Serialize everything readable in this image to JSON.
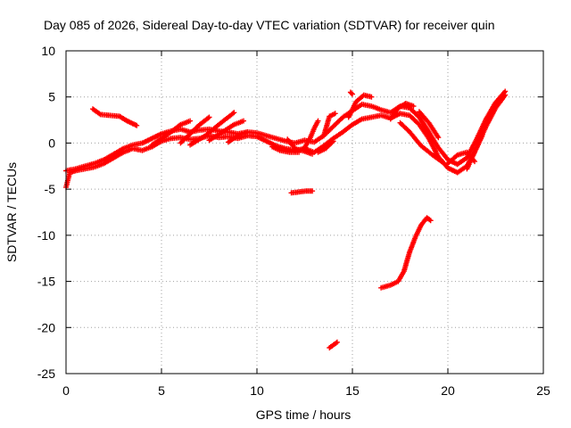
{
  "chart_data": {
    "type": "scatter",
    "title": "Day 085 of 2026, Sidereal Day-to-day VTEC variation (SDTVAR) for receiver quin",
    "xlabel": "GPS time / hours",
    "ylabel": "SDTVAR / TECUs",
    "xlim": [
      0,
      25
    ],
    "ylim": [
      -25,
      10
    ],
    "xticks": [
      0,
      5,
      10,
      15,
      20,
      25
    ],
    "yticks": [
      10,
      5,
      0,
      -5,
      -10,
      -15,
      -20,
      -25
    ],
    "grid": true,
    "marker": "+",
    "color": "#ff0000",
    "series": [
      {
        "name": "main-lower",
        "points": [
          [
            0.0,
            -4.8
          ],
          [
            0.2,
            -3.2
          ],
          [
            0.5,
            -3.0
          ],
          [
            1.0,
            -2.8
          ],
          [
            1.5,
            -2.6
          ],
          [
            2.0,
            -2.2
          ],
          [
            2.5,
            -1.6
          ],
          [
            3.0,
            -1.0
          ],
          [
            3.5,
            -0.6
          ],
          [
            4.0,
            -0.8
          ],
          [
            4.5,
            -0.4
          ],
          [
            5.0,
            0.2
          ],
          [
            5.5,
            0.5
          ],
          [
            6.0,
            0.6
          ],
          [
            6.5,
            0.4
          ],
          [
            7.0,
            0.5
          ],
          [
            7.5,
            0.8
          ],
          [
            8.0,
            0.6
          ],
          [
            8.5,
            0.7
          ],
          [
            9.0,
            0.5
          ],
          [
            9.5,
            0.8
          ],
          [
            10.0,
            0.7
          ],
          [
            10.5,
            0.2
          ],
          [
            11.0,
            -0.3
          ],
          [
            11.5,
            -0.6
          ],
          [
            12.0,
            -0.8
          ],
          [
            12.5,
            -0.6
          ],
          [
            13.0,
            -1.0
          ],
          [
            13.5,
            -0.3
          ],
          [
            14.0,
            0.5
          ],
          [
            14.5,
            1.2
          ],
          [
            15.0,
            2.0
          ],
          [
            15.5,
            2.6
          ],
          [
            16.0,
            2.8
          ],
          [
            16.5,
            3.0
          ],
          [
            17.0,
            2.7
          ],
          [
            17.5,
            3.2
          ],
          [
            18.0,
            3.0
          ],
          [
            18.5,
            2.0
          ],
          [
            19.0,
            0.5
          ],
          [
            19.5,
            -1.5
          ],
          [
            20.0,
            -2.7
          ],
          [
            20.5,
            -3.2
          ],
          [
            21.0,
            -2.5
          ],
          [
            21.5,
            -0.5
          ],
          [
            22.0,
            1.8
          ],
          [
            22.5,
            3.8
          ],
          [
            23.0,
            5.2
          ]
        ]
      },
      {
        "name": "main-upper",
        "points": [
          [
            0.0,
            -3.0
          ],
          [
            0.5,
            -2.8
          ],
          [
            1.0,
            -2.5
          ],
          [
            1.5,
            -2.2
          ],
          [
            2.0,
            -1.8
          ],
          [
            2.5,
            -1.2
          ],
          [
            3.0,
            -0.6
          ],
          [
            3.5,
            -0.2
          ],
          [
            4.0,
            0.0
          ],
          [
            4.5,
            0.5
          ],
          [
            5.0,
            1.0
          ],
          [
            5.5,
            1.3
          ],
          [
            6.0,
            1.5
          ],
          [
            6.5,
            1.2
          ],
          [
            7.0,
            1.4
          ],
          [
            7.5,
            1.5
          ],
          [
            8.0,
            1.3
          ],
          [
            8.5,
            1.2
          ],
          [
            9.0,
            1.0
          ],
          [
            9.5,
            1.2
          ],
          [
            10.0,
            1.1
          ],
          [
            10.5,
            0.8
          ],
          [
            11.0,
            0.5
          ],
          [
            11.5,
            0.2
          ],
          [
            12.0,
            0.0
          ],
          [
            12.5,
            0.3
          ],
          [
            13.0,
            0.1
          ],
          [
            13.5,
            0.8
          ],
          [
            14.0,
            1.8
          ],
          [
            14.5,
            2.8
          ],
          [
            15.0,
            3.5
          ],
          [
            15.5,
            4.2
          ],
          [
            16.0,
            4.0
          ],
          [
            16.5,
            3.6
          ],
          [
            17.0,
            3.3
          ],
          [
            17.5,
            4.0
          ],
          [
            18.0,
            3.8
          ],
          [
            18.5,
            2.8
          ],
          [
            19.0,
            1.2
          ],
          [
            19.5,
            -0.5
          ],
          [
            20.0,
            -1.8
          ],
          [
            20.5,
            -2.3
          ],
          [
            21.0,
            -1.6
          ],
          [
            21.5,
            0.4
          ],
          [
            22.0,
            2.6
          ],
          [
            22.5,
            4.4
          ],
          [
            23.0,
            5.6
          ]
        ]
      },
      {
        "name": "diag-1",
        "points": [
          [
            4.5,
            -0.2
          ],
          [
            5.0,
            0.5
          ],
          [
            5.5,
            1.2
          ],
          [
            6.0,
            2.0
          ],
          [
            6.5,
            2.4
          ]
        ]
      },
      {
        "name": "diag-2",
        "points": [
          [
            6.0,
            0.0
          ],
          [
            6.5,
            1.0
          ],
          [
            7.0,
            2.0
          ],
          [
            7.5,
            2.8
          ]
        ]
      },
      {
        "name": "diag-3",
        "points": [
          [
            6.5,
            -0.2
          ],
          [
            7.3,
            0.8
          ],
          [
            8.0,
            2.0
          ],
          [
            8.8,
            3.3
          ]
        ]
      },
      {
        "name": "diag-4",
        "points": [
          [
            7.5,
            0.3
          ],
          [
            8.2,
            1.2
          ],
          [
            8.8,
            2.0
          ],
          [
            9.3,
            2.4
          ]
        ]
      },
      {
        "name": "diag-5",
        "points": [
          [
            8.5,
            0.1
          ],
          [
            9.0,
            0.8
          ],
          [
            9.5,
            1.2
          ]
        ]
      },
      {
        "name": "arc-early",
        "points": [
          [
            1.4,
            3.7
          ],
          [
            1.8,
            3.1
          ],
          [
            2.3,
            3.0
          ],
          [
            2.8,
            2.9
          ],
          [
            3.2,
            2.4
          ],
          [
            3.7,
            1.9
          ]
        ]
      },
      {
        "name": "arc-mid-1",
        "points": [
          [
            10.8,
            -0.4
          ],
          [
            11.2,
            -0.8
          ],
          [
            11.7,
            -1.0
          ],
          [
            12.2,
            -1.0
          ]
        ]
      },
      {
        "name": "arc-mid-2",
        "points": [
          [
            11.6,
            0.4
          ],
          [
            12.0,
            -0.6
          ],
          [
            12.5,
            -0.9
          ],
          [
            12.9,
            -1.2
          ]
        ]
      },
      {
        "name": "arc-mid-3",
        "points": [
          [
            12.5,
            -0.5
          ],
          [
            12.8,
            0.6
          ],
          [
            13.0,
            1.6
          ],
          [
            13.2,
            2.4
          ]
        ]
      },
      {
        "name": "arc-mid-4",
        "points": [
          [
            13.2,
            -1.0
          ],
          [
            13.6,
            -0.6
          ],
          [
            14.0,
            0.2
          ]
        ]
      },
      {
        "name": "arc-late-1",
        "points": [
          [
            14.8,
            2.8
          ],
          [
            15.2,
            4.5
          ],
          [
            15.6,
            5.2
          ],
          [
            16.0,
            5.0
          ]
        ]
      },
      {
        "name": "arc-late-2",
        "points": [
          [
            17.0,
            2.6
          ],
          [
            17.4,
            3.8
          ],
          [
            17.8,
            4.3
          ],
          [
            18.2,
            4.0
          ]
        ]
      },
      {
        "name": "arc-late-3",
        "points": [
          [
            17.5,
            2.2
          ],
          [
            18.0,
            1.2
          ],
          [
            18.6,
            -0.3
          ],
          [
            19.2,
            -1.3
          ],
          [
            19.8,
            -2.2
          ]
        ]
      },
      {
        "name": "arc-late-4",
        "points": [
          [
            18.5,
            3.4
          ],
          [
            19.0,
            2.2
          ],
          [
            19.5,
            0.6
          ]
        ]
      },
      {
        "name": "arc-late-5",
        "points": [
          [
            20.0,
            -2.2
          ],
          [
            20.5,
            -1.3
          ],
          [
            21.0,
            -1.0
          ],
          [
            21.4,
            -2.0
          ]
        ]
      },
      {
        "name": "arc-late-6",
        "points": [
          [
            21.0,
            -2.8
          ],
          [
            21.4,
            -1.0
          ],
          [
            21.8,
            0.8
          ]
        ]
      },
      {
        "name": "isolated-small",
        "points": [
          [
            14.9,
            5.5
          ],
          [
            15.0,
            5.3
          ]
        ]
      },
      {
        "name": "isolated-short",
        "points": [
          [
            13.5,
            0.8
          ],
          [
            13.8,
            2.9
          ],
          [
            14.1,
            3.2
          ]
        ]
      },
      {
        "name": "low-flat",
        "points": [
          [
            11.8,
            -5.4
          ],
          [
            12.2,
            -5.3
          ],
          [
            12.6,
            -5.2
          ],
          [
            12.9,
            -5.2
          ]
        ]
      },
      {
        "name": "low-rising",
        "points": [
          [
            16.5,
            -15.7
          ],
          [
            17.0,
            -15.4
          ],
          [
            17.4,
            -15.0
          ],
          [
            17.7,
            -13.9
          ],
          [
            18.0,
            -11.8
          ],
          [
            18.3,
            -10.2
          ],
          [
            18.6,
            -8.9
          ],
          [
            18.9,
            -8.1
          ],
          [
            19.1,
            -8.4
          ]
        ]
      },
      {
        "name": "low-short",
        "points": [
          [
            13.8,
            -22.2
          ],
          [
            14.0,
            -21.9
          ],
          [
            14.2,
            -21.6
          ]
        ]
      }
    ]
  }
}
